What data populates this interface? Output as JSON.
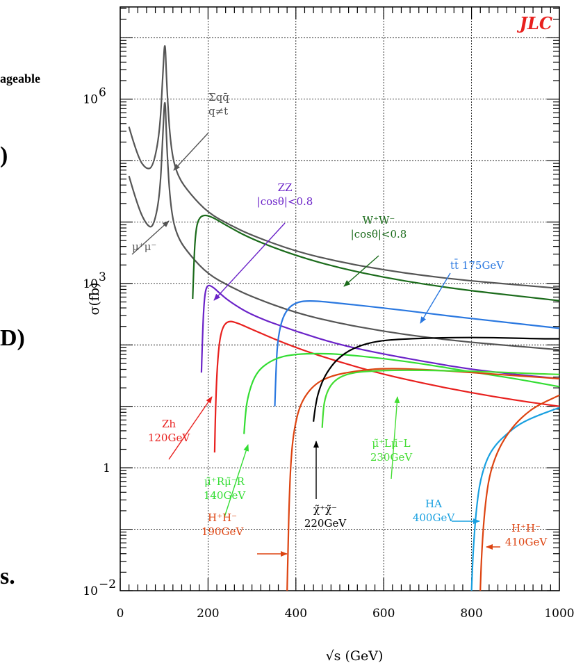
{
  "chart_data": {
    "type": "line",
    "title": "",
    "brand": "JLC",
    "xlabel": "√s (GeV)",
    "ylabel": "σ(fb)",
    "xlim": [
      0,
      1000
    ],
    "ylim_log10": [
      -2,
      7.5
    ],
    "yscale": "log",
    "grid": true,
    "x_ticks": [
      "0",
      "200",
      "400",
      "600",
      "800",
      "1000"
    ],
    "y_ticks": [
      {
        "value": -2,
        "base": "10",
        "exp": "−2"
      },
      {
        "value": 0,
        "base": "1",
        "exp": ""
      },
      {
        "value": 3,
        "base": "10",
        "exp": "3"
      },
      {
        "value": 6,
        "base": "10",
        "exp": "6"
      }
    ],
    "series": [
      {
        "id": "qq",
        "color": "#555555",
        "x": [
          20,
          40,
          60,
          75,
          90,
          97,
          102,
          106,
          115,
          130,
          160,
          200,
          250,
          300,
          400,
          500,
          600,
          700,
          800,
          900,
          1000
        ],
        "log_y": [
          5.55,
          5.05,
          4.85,
          4.9,
          5.45,
          6.4,
          7.05,
          6.2,
          5.2,
          4.75,
          4.45,
          4.15,
          3.95,
          3.78,
          3.52,
          3.35,
          3.22,
          3.12,
          3.04,
          2.98,
          2.92
        ]
      },
      {
        "id": "mumu",
        "color": "#555555",
        "x": [
          20,
          40,
          60,
          75,
          90,
          97,
          102,
          106,
          115,
          130,
          160,
          200,
          250,
          300,
          400,
          500,
          600,
          700,
          800,
          900,
          1000
        ],
        "log_y": [
          4.75,
          4.25,
          3.95,
          3.9,
          4.4,
          5.4,
          6.15,
          5.2,
          4.2,
          3.75,
          3.45,
          3.15,
          2.95,
          2.78,
          2.52,
          2.35,
          2.22,
          2.12,
          2.04,
          1.98,
          1.92
        ]
      },
      {
        "id": "ww",
        "color": "#1b6b1b",
        "x": [
          165,
          168,
          172,
          178,
          190,
          210,
          240,
          300,
          400,
          500,
          600,
          700,
          800,
          900,
          1000
        ],
        "log_y": [
          2.75,
          3.4,
          3.85,
          4.05,
          4.12,
          4.08,
          3.95,
          3.72,
          3.45,
          3.25,
          3.1,
          2.98,
          2.88,
          2.8,
          2.72
        ]
      },
      {
        "id": "zz",
        "color": "#6a22c8",
        "x": [
          185,
          188,
          192,
          198,
          210,
          225,
          250,
          300,
          400,
          500,
          600,
          700,
          800,
          900,
          1000
        ],
        "log_y": [
          1.55,
          2.3,
          2.8,
          2.98,
          2.95,
          2.85,
          2.7,
          2.48,
          2.22,
          2.0,
          1.85,
          1.72,
          1.6,
          1.52,
          1.45
        ]
      },
      {
        "id": "zh",
        "color": "#e8201e",
        "x": [
          215,
          217,
          222,
          230,
          245,
          270,
          300,
          400,
          500,
          600,
          700,
          800,
          900,
          1000
        ],
        "log_y": [
          0.25,
          1.0,
          1.8,
          2.25,
          2.4,
          2.35,
          2.25,
          1.95,
          1.72,
          1.52,
          1.36,
          1.22,
          1.1,
          1.0
        ]
      },
      {
        "id": "tt",
        "color": "#2a78e0",
        "x": [
          352,
          355,
          360,
          370,
          385,
          405,
          430,
          470,
          550,
          650,
          750,
          850,
          1000
        ],
        "log_y": [
          1.0,
          1.7,
          2.15,
          2.45,
          2.62,
          2.7,
          2.72,
          2.7,
          2.64,
          2.56,
          2.47,
          2.39,
          2.27
        ]
      },
      {
        "id": "mumuR",
        "color": "#33dd33",
        "x": [
          282,
          285,
          292,
          305,
          325,
          360,
          400,
          450,
          500,
          600,
          700,
          800,
          900,
          1000
        ],
        "log_y": [
          0.55,
          0.9,
          1.2,
          1.48,
          1.66,
          1.8,
          1.85,
          1.86,
          1.85,
          1.78,
          1.68,
          1.56,
          1.45,
          1.32
        ]
      },
      {
        "id": "hh",
        "color": "#dd4411",
        "x": [
          380,
          382,
          384,
          388,
          395,
          410,
          440,
          480,
          540,
          600,
          700,
          800,
          900,
          1000
        ],
        "log_y": [
          -2.0,
          -1.4,
          -0.7,
          0.05,
          0.6,
          1.05,
          1.35,
          1.5,
          1.58,
          1.62,
          1.6,
          1.55,
          1.5,
          1.45
        ]
      },
      {
        "id": "chi",
        "color": "#000000",
        "x": [
          440,
          445,
          455,
          470,
          495,
          530,
          580,
          650,
          750,
          850,
          950,
          1000
        ],
        "log_y": [
          0.75,
          1.05,
          1.32,
          1.55,
          1.78,
          1.95,
          2.06,
          2.1,
          2.12,
          2.12,
          2.1,
          2.1
        ]
      },
      {
        "id": "mumuL",
        "color": "#44dd33",
        "x": [
          460,
          462,
          468,
          480,
          500,
          530,
          580,
          650,
          750,
          850,
          950,
          1000
        ],
        "log_y": [
          0.65,
          0.95,
          1.18,
          1.36,
          1.48,
          1.55,
          1.58,
          1.59,
          1.58,
          1.56,
          1.53,
          1.52
        ]
      },
      {
        "id": "ha",
        "color": "#19a0e0",
        "x": [
          800,
          802,
          806,
          812,
          820,
          835,
          855,
          880,
          910,
          950,
          1000
        ],
        "log_y": [
          -2.0,
          -1.6,
          -1.1,
          -0.6,
          -0.2,
          0.15,
          0.38,
          0.55,
          0.72,
          0.85,
          0.98
        ]
      },
      {
        "id": "hhA",
        "color": "#dd4411",
        "x": [
          820,
          822,
          826,
          832,
          840,
          855,
          875,
          900,
          930,
          960,
          1000
        ],
        "log_y": [
          -2.0,
          -1.55,
          -1.05,
          -0.55,
          -0.15,
          0.2,
          0.48,
          0.72,
          0.92,
          1.05,
          1.18
        ]
      }
    ],
    "annotations": [
      {
        "id": "ann-qq",
        "color": "#555555",
        "lines": [
          "Σqq̄",
          "q≠t"
        ]
      },
      {
        "id": "ann-mumu",
        "color": "#555555",
        "lines": [
          "μ⁺μ⁻"
        ]
      },
      {
        "id": "ann-zz",
        "color": "#6a22c8",
        "lines": [
          "ZZ",
          "|cosθ|<0.8"
        ]
      },
      {
        "id": "ann-ww",
        "color": "#1b6b1b",
        "lines": [
          "W⁺W⁻",
          "|cosθ|<0.8"
        ]
      },
      {
        "id": "ann-tt",
        "color": "#2a78e0",
        "lines": [
          "tt̄ 175GeV"
        ]
      },
      {
        "id": "ann-zh",
        "color": "#e8201e",
        "lines": [
          "Zh",
          "120GeV"
        ]
      },
      {
        "id": "ann-mumuR",
        "color": "#33dd33",
        "lines": [
          "μ̃⁺Rμ̃⁻R",
          "140GeV"
        ]
      },
      {
        "id": "ann-hh",
        "color": "#dd4411",
        "lines": [
          "H⁺H⁻",
          "190GeV"
        ]
      },
      {
        "id": "ann-chi",
        "color": "#000000",
        "lines": [
          "χ̃⁺χ̃⁻",
          "220GeV"
        ]
      },
      {
        "id": "ann-mumuL",
        "color": "#44dd33",
        "lines": [
          "μ̃⁺Lμ̃⁻L",
          "230GeV"
        ]
      },
      {
        "id": "ann-ha",
        "color": "#19a0e0",
        "lines": [
          "HA",
          "400GeV"
        ]
      },
      {
        "id": "ann-hhA",
        "color": "#dd4411",
        "lines": [
          "H⁺H⁻",
          "410GeV"
        ]
      }
    ]
  },
  "background_fragments": {
    "line1": "ageable",
    "line2": ")",
    "line3": "D)",
    "line4": "s."
  }
}
